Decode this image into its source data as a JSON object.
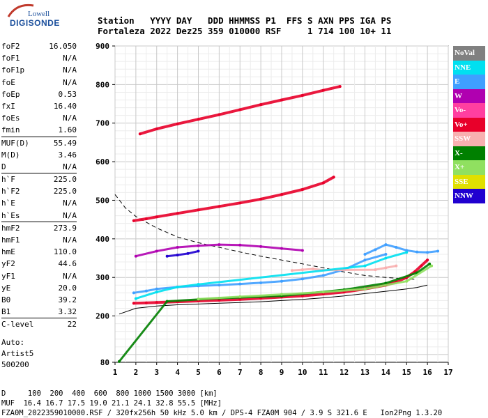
{
  "logo": {
    "line1": "Lowell",
    "line2": "DIGISONDE"
  },
  "header": {
    "row1": "Station   YYYY DAY   DDD HHMMSS P1  FFS S AXN PPS IGA PS",
    "row2": "Fortaleza 2022 Dez25 359 010000 RSF     1 714 100 10+ 11"
  },
  "params": [
    [
      {
        "name": "foF2",
        "value": "16.050"
      },
      {
        "name": "foF1",
        "value": "N/A"
      },
      {
        "name": "foF1p",
        "value": "N/A"
      },
      {
        "name": "foE",
        "value": "N/A"
      },
      {
        "name": "foEp",
        "value": "0.53"
      },
      {
        "name": "fxI",
        "value": "16.40"
      },
      {
        "name": "foEs",
        "value": "N/A"
      },
      {
        "name": "fmin",
        "value": "1.60"
      }
    ],
    [
      {
        "name": "MUF(D)",
        "value": "55.49"
      },
      {
        "name": "M(D)",
        "value": "3.46"
      },
      {
        "name": "D",
        "value": "N/A"
      }
    ],
    [
      {
        "name": "h`F",
        "value": "225.0"
      },
      {
        "name": "h`F2",
        "value": "225.0"
      },
      {
        "name": "h`E",
        "value": "N/A"
      },
      {
        "name": "h`Es",
        "value": "N/A"
      }
    ],
    [
      {
        "name": "hmF2",
        "value": "273.9"
      },
      {
        "name": "hmF1",
        "value": "N/A"
      },
      {
        "name": "hmE",
        "value": "110.0"
      },
      {
        "name": "yF2",
        "value": "44.6"
      },
      {
        "name": "yF1",
        "value": "N/A"
      },
      {
        "name": "yE",
        "value": "20.0"
      },
      {
        "name": "B0",
        "value": "39.2"
      },
      {
        "name": "B1",
        "value": "3.32"
      }
    ],
    [
      {
        "name": "C-level",
        "value": "22"
      }
    ]
  ],
  "auto": {
    "line1": "Auto:",
    "line2": "Artist5",
    "line3": "500200"
  },
  "legend": [
    {
      "label": "NoVal",
      "color": "#808080"
    },
    {
      "label": "NNE",
      "color": "#00e0f0"
    },
    {
      "label": "E",
      "color": "#3f9fff"
    },
    {
      "label": "W",
      "color": "#b000b0"
    },
    {
      "label": "Vo-",
      "color": "#ff3fa0"
    },
    {
      "label": "Vo+",
      "color": "#e8002a"
    },
    {
      "label": "SSW",
      "color": "#f8b0b0"
    },
    {
      "label": "X-",
      "color": "#008000"
    },
    {
      "label": "X+",
      "color": "#90e060"
    },
    {
      "label": "SSE",
      "color": "#e0e000"
    },
    {
      "label": "NNW",
      "color": "#2000d0"
    }
  ],
  "footer": {
    "line1": "D     100  200  400  600  800 1000 1500 3000 [km]",
    "line2": "MUF  16.4 16.7 17.5 19.0 21.1 24.1 32.8 55.5 [MHz]",
    "line3": "FZA0M_2022359010000.RSF / 320fx256h 50 kHz 5.0 km / DPS-4 FZA0M 904 / 3.9 S 321.6 E   Ion2Png 1.3.20"
  },
  "chart_data": {
    "type": "scatter",
    "xlim": [
      1,
      17
    ],
    "ylim": [
      80,
      900
    ],
    "xticks": [
      1,
      2,
      3,
      4,
      5,
      6,
      7,
      8,
      9,
      10,
      11,
      12,
      13,
      14,
      15,
      16,
      17
    ],
    "yticks": [
      80,
      200,
      300,
      400,
      500,
      600,
      700,
      800,
      900
    ],
    "grid": true,
    "legend_position": "right",
    "traces": [
      {
        "name": "Vo+",
        "color": "#e8002a",
        "x": [
          1.9,
          2.5,
          3,
          4,
          5,
          6,
          7,
          8,
          9,
          10,
          11,
          12,
          13,
          14,
          14.5,
          15,
          15.4,
          15.7,
          16.0
        ],
        "y": [
          233,
          234,
          235,
          237,
          239,
          241,
          243,
          246,
          249,
          252,
          257,
          262,
          270,
          280,
          288,
          300,
          315,
          330,
          345
        ]
      },
      {
        "name": "Vo+",
        "color": "#e8002a",
        "x": [
          1.9,
          2.5,
          3,
          4,
          5,
          6,
          7,
          8,
          9,
          10,
          11,
          11.5
        ],
        "y": [
          447,
          452,
          457,
          466,
          475,
          484,
          493,
          503,
          515,
          528,
          545,
          560
        ]
      },
      {
        "name": "Vo+",
        "color": "#e8002a",
        "x": [
          2.2,
          3,
          4,
          5,
          6,
          7,
          8,
          9,
          10,
          11,
          11.8
        ],
        "y": [
          672,
          685,
          698,
          710,
          722,
          735,
          748,
          760,
          772,
          785,
          795
        ]
      },
      {
        "name": "E",
        "color": "#3f9fff",
        "x": [
          1.9,
          2.5,
          3,
          4,
          5,
          6,
          7,
          8,
          9,
          10,
          11,
          12,
          13,
          14
        ],
        "y": [
          260,
          265,
          270,
          275,
          278,
          280,
          283,
          286,
          290,
          296,
          305,
          320,
          345,
          360
        ]
      },
      {
        "name": "E",
        "color": "#3f9fff",
        "x": [
          13,
          13.5,
          14,
          14.5,
          15,
          15.5,
          16,
          16.5
        ],
        "y": [
          360,
          372,
          385,
          378,
          370,
          366,
          365,
          368
        ]
      },
      {
        "name": "W",
        "color": "#b000b0",
        "x": [
          2,
          3,
          4,
          5,
          6,
          7,
          8,
          9,
          10
        ],
        "y": [
          355,
          368,
          378,
          382,
          385,
          384,
          380,
          375,
          370
        ]
      },
      {
        "name": "NNW",
        "color": "#2000d0",
        "x": [
          3.5,
          4,
          4.5,
          5
        ],
        "y": [
          355,
          358,
          362,
          368
        ]
      },
      {
        "name": "SSW",
        "color": "#f8b0b0",
        "x": [
          9.5,
          10,
          10.5,
          11,
          13.5,
          14,
          14.5
        ],
        "y": [
          318,
          320,
          322,
          319,
          320,
          325,
          330
        ]
      },
      {
        "name": "X-",
        "color": "#008000",
        "x": [
          1.2,
          3.5,
          6,
          9,
          12,
          14,
          15.5,
          16.1
        ],
        "y": [
          82,
          238,
          246,
          252,
          268,
          285,
          312,
          335
        ]
      },
      {
        "name": "X+",
        "color": "#90e060",
        "x": [
          5,
          7,
          9,
          11,
          13,
          15,
          16.2
        ],
        "y": [
          244,
          250,
          256,
          262,
          270,
          290,
          330
        ]
      },
      {
        "name": "NNE",
        "color": "#00e0f0",
        "x": [
          2,
          3,
          4,
          5,
          13,
          14,
          15
        ],
        "y": [
          245,
          262,
          275,
          282,
          330,
          350,
          365
        ]
      }
    ],
    "profile_curves": [
      {
        "style": "solid",
        "x": [
          1.2,
          2,
          3,
          4,
          5,
          6,
          7,
          8,
          9,
          10,
          11,
          12,
          13,
          14,
          15,
          15.5,
          16
        ],
        "y": [
          205,
          220,
          226,
          229,
          231,
          233,
          235,
          237,
          240,
          243,
          247,
          252,
          258,
          264,
          270,
          274,
          280
        ]
      },
      {
        "style": "dashed",
        "x": [
          1,
          1.5,
          2,
          3,
          4,
          5,
          6,
          7,
          8,
          9,
          10,
          11,
          12,
          13,
          14,
          15,
          15.5
        ],
        "y": [
          515,
          480,
          458,
          428,
          405,
          390,
          378,
          366,
          355,
          345,
          335,
          325,
          314,
          305,
          300,
          296,
          295
        ]
      }
    ]
  }
}
